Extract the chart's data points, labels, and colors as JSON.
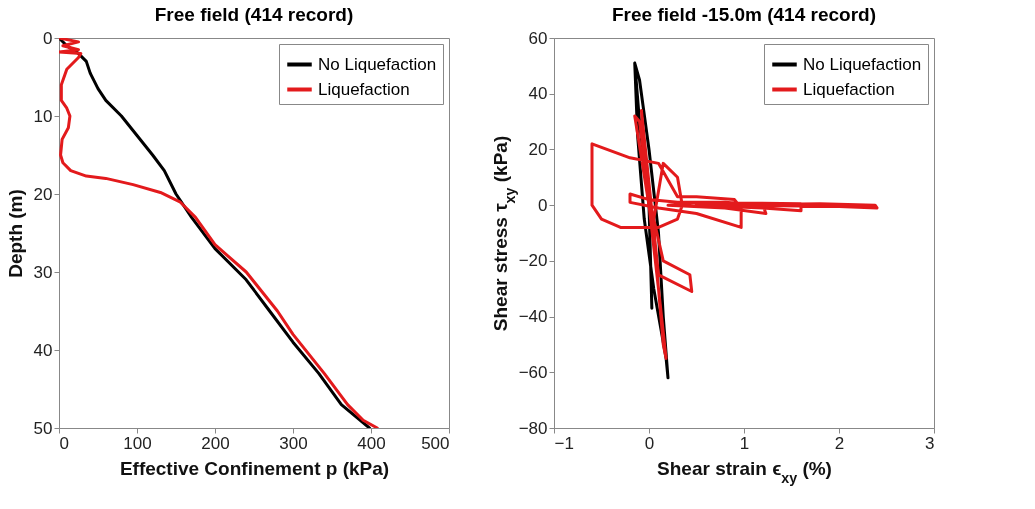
{
  "chart_data": [
    {
      "type": "line",
      "title": "Free field (414 record)",
      "xlabel": "Effective Confinement p (kPa)",
      "ylabel": "Depth (m)",
      "xlim": [
        0,
        500
      ],
      "xticks": [
        0,
        100,
        200,
        300,
        400,
        500
      ],
      "ylim": [
        50,
        0
      ],
      "yticks": [
        0,
        10,
        20,
        30,
        40,
        50
      ],
      "grid": false,
      "legend": "top right",
      "series": [
        {
          "name": "No Liquefaction",
          "color": "#000000",
          "x": [
            0,
            10,
            25,
            35,
            40,
            50,
            60,
            80,
            100,
            120,
            135,
            150,
            170,
            200,
            240,
            270,
            300,
            333,
            362,
            398
          ],
          "values": [
            0,
            1,
            2,
            3,
            4.5,
            6.5,
            8,
            10,
            12.5,
            15,
            17,
            20,
            23,
            27,
            31,
            35,
            39,
            43,
            47,
            50
          ]
        },
        {
          "name": "Liquefaction",
          "color": "#e31a1c",
          "x": [
            0,
            25,
            5,
            25,
            0,
            28,
            25,
            10,
            3,
            3,
            10,
            14,
            12,
            4,
            2,
            5,
            15,
            35,
            60,
            95,
            130,
            155,
            175,
            200,
            240,
            280,
            300,
            340,
            370,
            390,
            408
          ],
          "values": [
            0,
            0.5,
            1,
            1.5,
            1.8,
            2,
            2.5,
            4,
            6,
            8,
            9,
            10,
            11.5,
            13,
            15,
            16,
            17,
            17.7,
            18,
            18.8,
            19.8,
            21,
            23,
            26.5,
            30,
            35,
            38,
            43,
            47,
            49,
            50
          ]
        }
      ]
    },
    {
      "type": "line",
      "title": "Free field -15.0m (414 record)",
      "xlabel": "Shear strain ϵ$_{xy}$ (%)",
      "ylabel": "Shear stress τ$_{xy}$ (kPa)",
      "xlim": [
        -1,
        3
      ],
      "xticks": [
        -1,
        0,
        1,
        2,
        3
      ],
      "ylim": [
        -80,
        60
      ],
      "yticks": [
        -80,
        -60,
        -40,
        -20,
        0,
        20,
        40,
        60
      ],
      "grid": false,
      "legend": "top right",
      "series": [
        {
          "name": "No Liquefaction",
          "color": "#000000",
          "x": [
            -0.15,
            -0.1,
            0,
            0.1,
            0.15,
            0.2,
            0.18,
            0.05,
            -0.05,
            -0.12,
            -0.15,
            -0.1,
            0,
            0.03
          ],
          "values": [
            51,
            45,
            20,
            -10,
            -40,
            -62,
            -55,
            -30,
            -5,
            25,
            51,
            30,
            0,
            -37
          ]
        },
        {
          "name": "Liquefaction",
          "color": "#e31a1c",
          "x": [
            0,
            -0.15,
            -0.1,
            0.05,
            0.15,
            0.18,
            0.1,
            0,
            -0.08,
            0.1,
            0.45,
            0.43,
            0.15,
            0.05,
            0.15,
            0.3,
            0.35,
            0.3,
            0.1,
            -0.3,
            -0.5,
            -0.6,
            -0.6,
            -0.2,
            0.1,
            0.3,
            0.5,
            0.9,
            0.97,
            0.97,
            0.5,
            0.1,
            -0.2,
            -0.2,
            0,
            0.3,
            0.8,
            1.2,
            1.23,
            0.8,
            0.2,
            0.6,
            1.6,
            1.6,
            1.2,
            0.5,
            1.8,
            2.38,
            2.4,
            2.0,
            1.0,
            0.5
          ],
          "values": [
            0,
            32,
            30,
            -10,
            -50,
            -55,
            -30,
            0,
            34,
            -25,
            -31,
            -25,
            -20,
            -5,
            15,
            10,
            0,
            -5,
            -8,
            -8,
            -5,
            0,
            22,
            17,
            15,
            3,
            3,
            2,
            -1,
            -8,
            -3,
            -1,
            1,
            4,
            2,
            1,
            1,
            0,
            -3,
            -1,
            0,
            1,
            0.5,
            -2,
            -1,
            0,
            0.5,
            0,
            -1,
            -0.5,
            0,
            1
          ]
        }
      ]
    }
  ]
}
